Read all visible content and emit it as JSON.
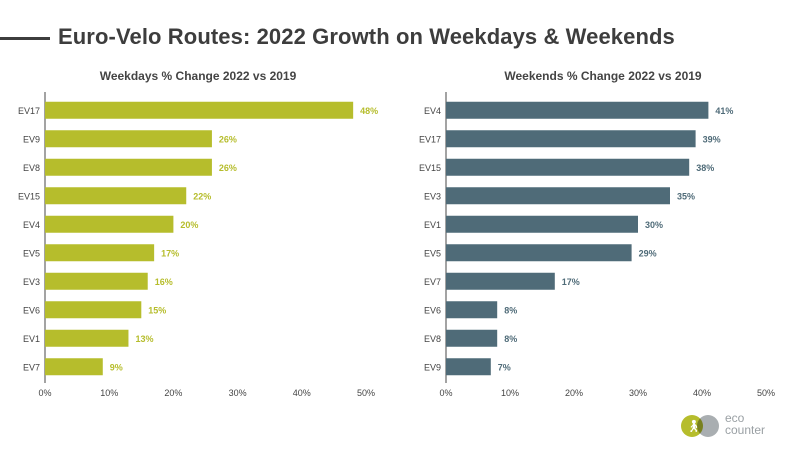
{
  "page_title": "Euro-Velo Routes: 2022 Growth on Weekdays & Weekends",
  "logo": {
    "line1": "eco",
    "line2": "counter"
  },
  "colors": {
    "weekdays": "#b6bd2c",
    "weekends": "#4f6b78",
    "weekday_label": "#b6bd2c",
    "weekend_label": "#4f6b78"
  },
  "chart_data": [
    {
      "type": "bar",
      "orientation": "horizontal",
      "title": "Weekdays % Change 2022 vs 2019",
      "categories": [
        "EV17",
        "EV9",
        "EV8",
        "EV15",
        "EV4",
        "EV5",
        "EV3",
        "EV6",
        "EV1",
        "EV7"
      ],
      "values": [
        48,
        26,
        26,
        22,
        20,
        17,
        16,
        15,
        13,
        9
      ],
      "value_labels": [
        "48%",
        "26%",
        "26%",
        "22%",
        "20%",
        "17%",
        "16%",
        "15%",
        "13%",
        "9%"
      ],
      "xlim": [
        0,
        50
      ],
      "x_ticks": [
        "0%",
        "10%",
        "20%",
        "30%",
        "40%",
        "50%"
      ],
      "grid": false
    },
    {
      "type": "bar",
      "orientation": "horizontal",
      "title": "Weekends % Change 2022 vs 2019",
      "categories": [
        "EV4",
        "EV17",
        "EV15",
        "EV3",
        "EV1",
        "EV5",
        "EV7",
        "EV6",
        "EV8",
        "EV9"
      ],
      "values": [
        41,
        39,
        38,
        35,
        30,
        29,
        17,
        8,
        8,
        7
      ],
      "value_labels": [
        "41%",
        "39%",
        "38%",
        "35%",
        "30%",
        "29%",
        "17%",
        "8%",
        "8%",
        "7%"
      ],
      "xlim": [
        0,
        50
      ],
      "x_ticks": [
        "0%",
        "10%",
        "20%",
        "30%",
        "40%",
        "50%"
      ],
      "grid": false
    }
  ]
}
